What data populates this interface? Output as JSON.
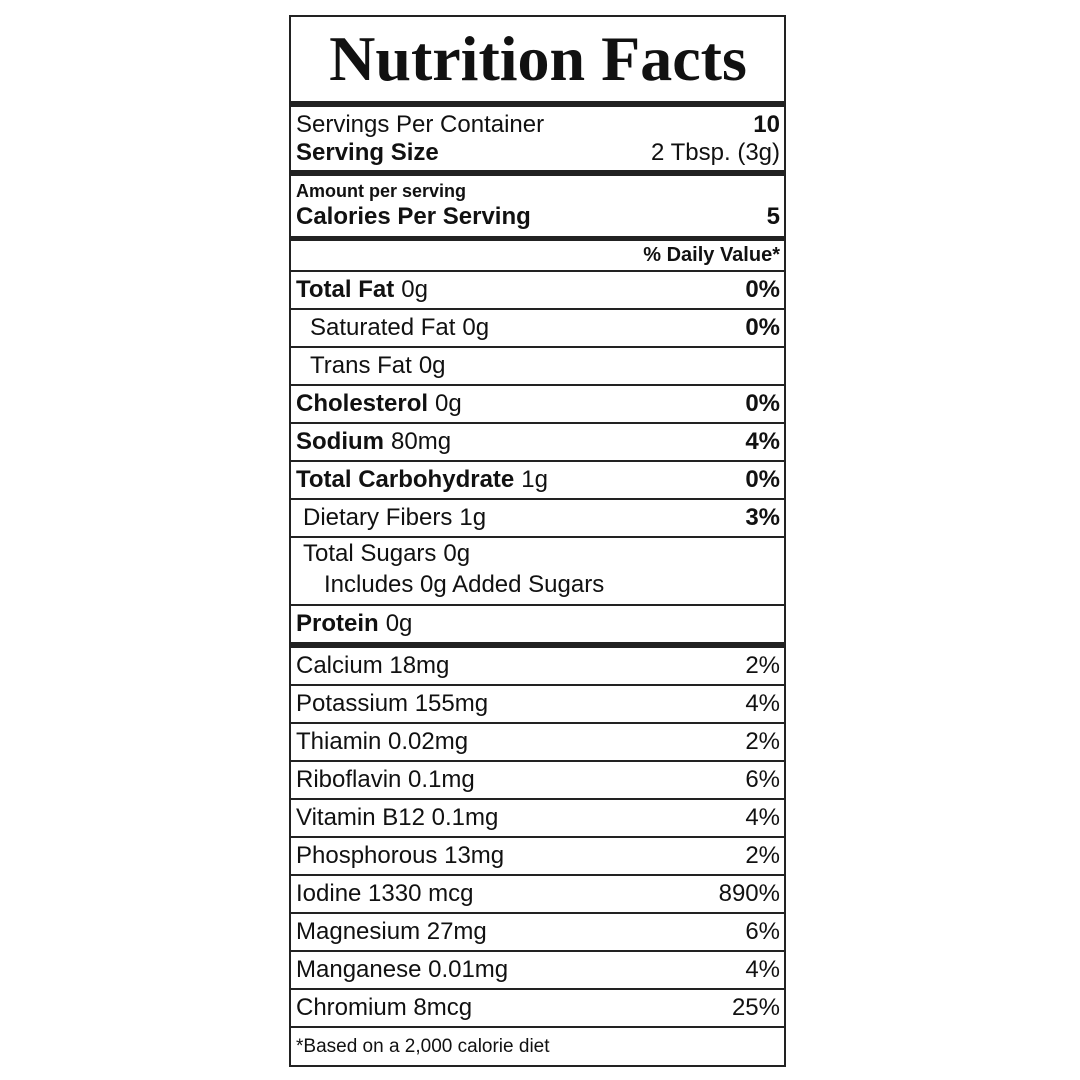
{
  "title": "Nutrition Facts",
  "servings": {
    "label": "Servings Per Container",
    "value": "10"
  },
  "serving_size": {
    "label": "Serving Size",
    "value": "2 Tbsp. (3g)"
  },
  "amount_label": "Amount per serving",
  "calories": {
    "label": "Calories Per Serving",
    "value": "5"
  },
  "dv_header": "% Daily Value*",
  "nutrients": [
    {
      "name": "Total Fat",
      "amount": "0g",
      "dv": "0%"
    },
    {
      "name": "Saturated Fat",
      "amount": "0g",
      "dv": "0%"
    },
    {
      "name": "Trans Fat",
      "amount": "0g"
    },
    {
      "name": "Cholesterol",
      "amount": "0g",
      "dv": "0%"
    },
    {
      "name": "Sodium",
      "amount": "80mg",
      "dv": "4%"
    },
    {
      "name": "Total Carbohydrate",
      "amount": "1g",
      "dv": "0%"
    },
    {
      "name": "Dietary Fibers",
      "amount": "1g",
      "dv": "3%"
    },
    {
      "name": "Total Sugars",
      "amount": "0g",
      "sub": "Includes 0g Added Sugars"
    },
    {
      "name": "Protein",
      "amount": "0g"
    }
  ],
  "vitamins": [
    {
      "name": "Calcium 18mg",
      "dv": "2%"
    },
    {
      "name": "Potassium 155mg",
      "dv": "4%"
    },
    {
      "name": "Thiamin 0.02mg",
      "dv": "2%"
    },
    {
      "name": "Riboflavin 0.1mg",
      "dv": "6%"
    },
    {
      "name": "Vitamin B12 0.1mg",
      "dv": "4%"
    },
    {
      "name": "Phosphorous 13mg",
      "dv": "2%"
    },
    {
      "name": "Iodine 1330 mcg",
      "dv": "890%"
    },
    {
      "name": "Magnesium 27mg",
      "dv": "6%"
    },
    {
      "name": "Manganese 0.01mg",
      "dv": "4%"
    },
    {
      "name": "Chromium 8mcg",
      "dv": "25%"
    }
  ],
  "footnote": "*Based on a 2,000 calorie diet"
}
